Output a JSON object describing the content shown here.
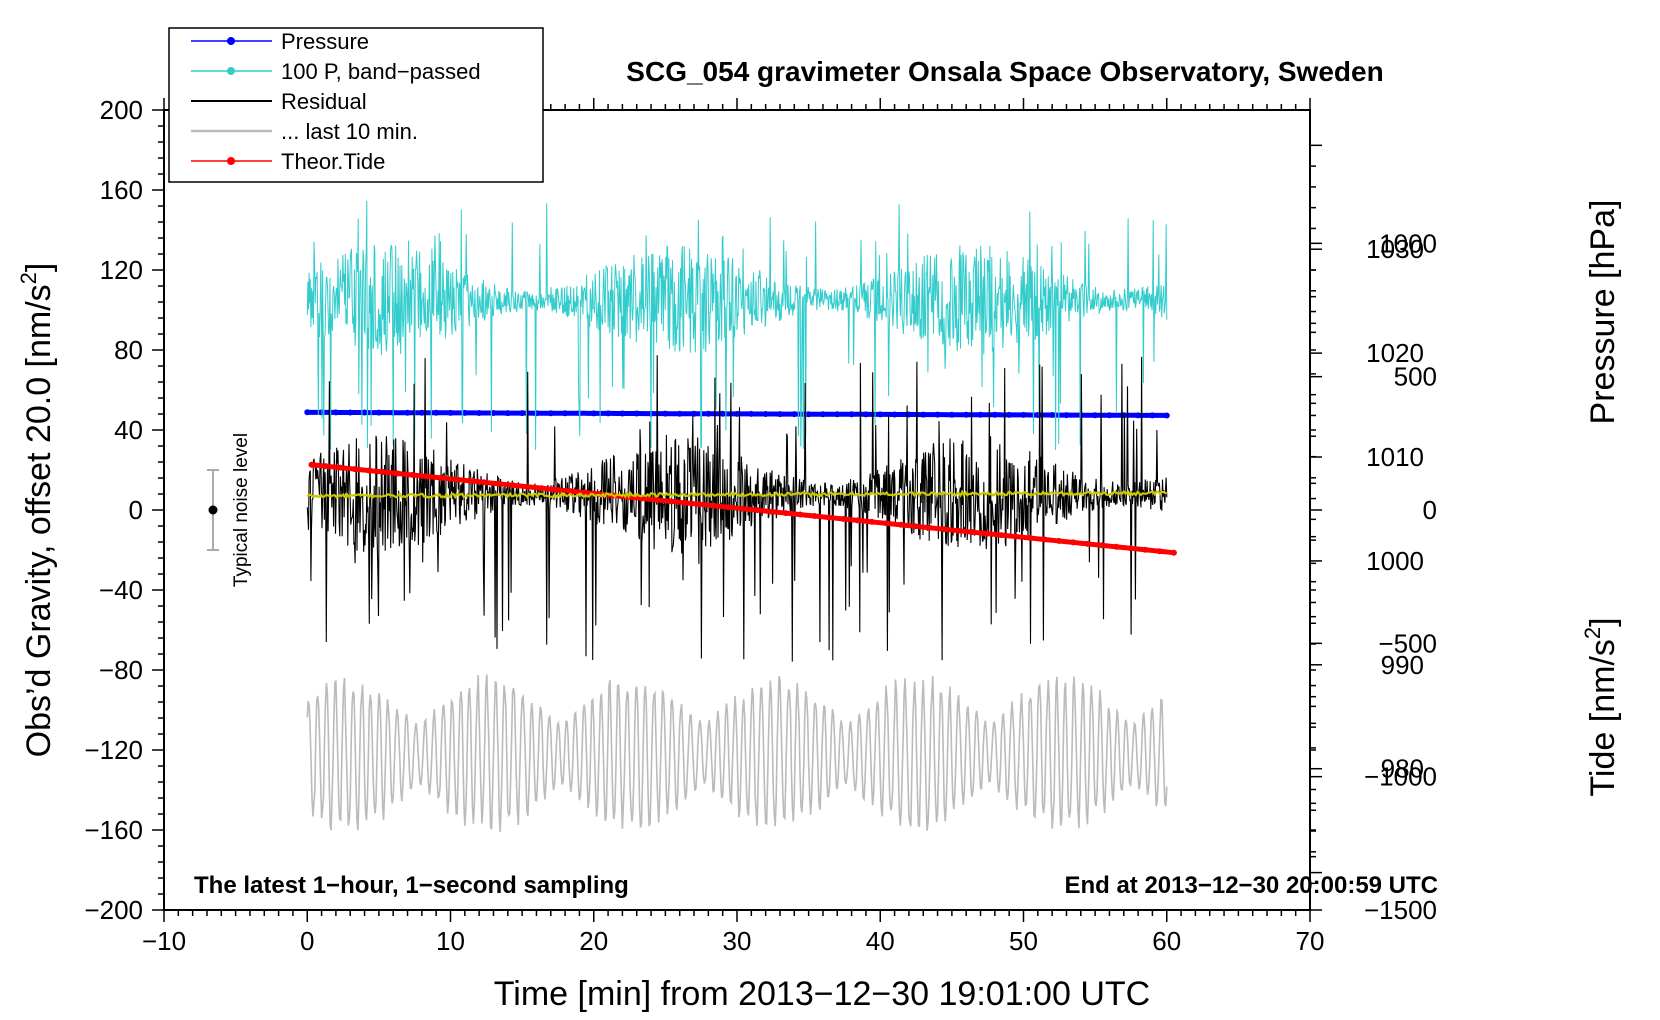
{
  "chart_data": {
    "type": "line",
    "title": "SCG_054 gravimeter Onsala Space Observatory, Sweden",
    "xlabel": "Time [min] from 2013−12−30 19:01:00 UTC",
    "ylabel_left_main": "Obs’d Gravity, offset 20.0 [nm/s",
    "ylabel_left_sup": "2",
    "ylabel_left_end": "]",
    "ylabel_right_pressure": "Pressure [hPa]",
    "ylabel_right_tide_main": "Tide [nm/s",
    "ylabel_right_tide_sup": "2",
    "ylabel_right_tide_end": "]",
    "xlim": [
      -10,
      70
    ],
    "ylim": [
      -200,
      200
    ],
    "pressure_lim": [
      966.4,
      1043.4
    ],
    "tide_lim": [
      -1500,
      1500
    ],
    "x_ticks": [
      {
        "value": -10,
        "label": "−10"
      },
      {
        "value": 0,
        "label": "0"
      },
      {
        "value": 10,
        "label": "10"
      },
      {
        "value": 20,
        "label": "20"
      },
      {
        "value": 30,
        "label": "30"
      },
      {
        "value": 40,
        "label": "40"
      },
      {
        "value": 50,
        "label": "50"
      },
      {
        "value": 60,
        "label": "60"
      },
      {
        "value": 70,
        "label": "70"
      }
    ],
    "y_ticks": [
      {
        "value": 200,
        "label": "200"
      },
      {
        "value": 160,
        "label": "160"
      },
      {
        "value": 120,
        "label": "120"
      },
      {
        "value": 80,
        "label": "80"
      },
      {
        "value": 40,
        "label": "40"
      },
      {
        "value": 0,
        "label": "0"
      },
      {
        "value": -40,
        "label": "−40"
      },
      {
        "value": -80,
        "label": "−80"
      },
      {
        "value": -120,
        "label": "−120"
      },
      {
        "value": -160,
        "label": "−160"
      },
      {
        "value": -200,
        "label": "−200"
      }
    ],
    "pressure_ticks": [
      {
        "value": 1030,
        "label": "1030"
      },
      {
        "value": 1020,
        "label": "1020"
      },
      {
        "value": 1010,
        "label": "1010"
      },
      {
        "value": 1000,
        "label": "1000"
      },
      {
        "value": 990,
        "label": "990"
      },
      {
        "value": 980,
        "label": "980"
      }
    ],
    "tide_ticks": [
      {
        "value": 1000,
        "label": "1000"
      },
      {
        "value": 500,
        "label": "500"
      },
      {
        "value": 0,
        "label": "0"
      },
      {
        "value": -500,
        "label": "−500"
      },
      {
        "value": -1000,
        "label": "−1000"
      },
      {
        "value": -1500,
        "label": "−1500"
      }
    ],
    "series": [
      {
        "name": "Pressure",
        "color": "#0000ff",
        "axis": "pressure",
        "style": "line-dots",
        "x": [
          0,
          60
        ],
        "values": [
          1014.3,
          1014.0
        ]
      },
      {
        "name": "100 P, band−passed",
        "color": "#33cccc",
        "axis": "gravity",
        "style": "noise",
        "x_range": [
          0,
          60
        ],
        "center": 105,
        "amplitude": 28,
        "spike_range": [
          30,
          155
        ]
      },
      {
        "name": "Residual",
        "color": "#000000",
        "axis": "gravity",
        "style": "noise",
        "x_range": [
          0,
          60
        ],
        "center": 8,
        "amplitude": 30,
        "spike_range": [
          -77,
          78
        ]
      },
      {
        "name": "... last 10 min.",
        "color": "#bbbbbb",
        "axis": "gravity",
        "style": "oscillation",
        "x_range": [
          0,
          60
        ],
        "center": -122,
        "amplitude": 26,
        "spike_range": [
          -177,
          -67
        ]
      },
      {
        "name": "Theor.Tide",
        "color": "#ff0000",
        "axis": "tide",
        "style": "line-dots",
        "x": [
          0.3,
          60.5
        ],
        "values": [
          170,
          -160
        ]
      },
      {
        "name": "mean",
        "color": "#c8c800",
        "axis": "gravity",
        "style": "smooth",
        "x": [
          0,
          60
        ],
        "values": [
          7,
          8.5
        ]
      }
    ],
    "noise_level": {
      "label": "Typical noise level",
      "x": -7,
      "center": 0,
      "half_width": 20
    },
    "annotation_left": "The latest 1−hour, 1−second sampling",
    "annotation_right": "End at 2013−12−30 20:00:59 UTC",
    "legend": {
      "placement": "top-left",
      "items": [
        {
          "label": "Pressure",
          "color": "#0000ff",
          "marker": true
        },
        {
          "label": "100 P, band−passed",
          "color": "#33cccc",
          "marker": true
        },
        {
          "label": "Residual",
          "color": "#000000",
          "marker": false
        },
        {
          "label": "... last 10 min.",
          "color": "#bbbbbb",
          "marker": false
        },
        {
          "label": "Theor.Tide",
          "color": "#ff0000",
          "marker": true
        }
      ]
    }
  }
}
